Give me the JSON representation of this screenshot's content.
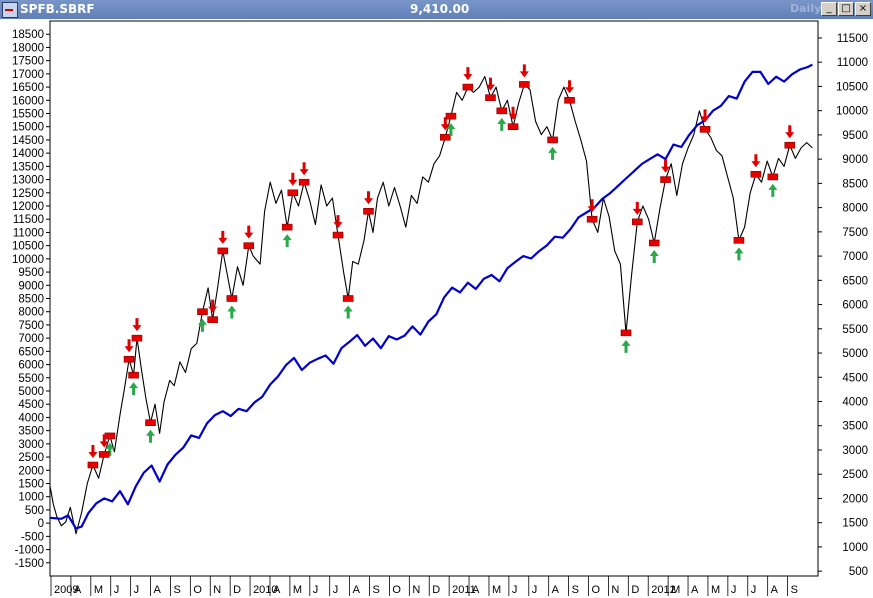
{
  "window": {
    "symbol": "SPFB.SBRF",
    "last_value": "9,410.00",
    "period": "Daily",
    "buttons": [
      {
        "name": "minimize-button",
        "glyph": "_"
      },
      {
        "name": "maximize-button",
        "glyph": "□"
      },
      {
        "name": "close-button",
        "glyph": "×"
      }
    ]
  },
  "chart_data": {
    "type": "line",
    "left_axis": {
      "ticks": [
        -1500,
        -1000,
        -500,
        0,
        500,
        1000,
        1500,
        2000,
        2500,
        3000,
        3500,
        4000,
        4500,
        5000,
        5500,
        6000,
        6500,
        7000,
        7500,
        8000,
        8500,
        9000,
        9500,
        10000,
        10500,
        11000,
        11500,
        12000,
        12500,
        13000,
        13500,
        14000,
        14500,
        15000,
        15500,
        16000,
        16500,
        17000,
        17500,
        18000,
        18500
      ],
      "range": [
        -2000,
        19000
      ]
    },
    "right_axis": {
      "ticks": [
        500,
        1000,
        1500,
        2000,
        2500,
        3000,
        3500,
        4000,
        4500,
        5000,
        5500,
        6000,
        6500,
        7000,
        7500,
        8000,
        8500,
        9000,
        9500,
        10000,
        10500,
        11000,
        11500
      ],
      "range": [
        400,
        11850
      ]
    },
    "x_labels": [
      "2009",
      "A",
      "M",
      "J",
      "J",
      "A",
      "S",
      "O",
      "N",
      "D",
      "2010",
      "A",
      "M",
      "J",
      "J",
      "A",
      "S",
      "O",
      "N",
      "D",
      "2011",
      "A",
      "M",
      "J",
      "J",
      "A",
      "S",
      "O",
      "N",
      "D",
      "2012",
      "M",
      "A",
      "M",
      "J",
      "J",
      "A",
      "S"
    ],
    "series": [
      {
        "id": "equity",
        "axis": "left",
        "color": "#000000",
        "points": [
          [
            0,
            1400
          ],
          [
            0.3,
            700
          ],
          [
            0.6,
            250
          ],
          [
            1,
            -100
          ],
          [
            1.4,
            50
          ],
          [
            1.8,
            600
          ],
          [
            2.3,
            -400
          ],
          [
            2.8,
            400
          ],
          [
            3.3,
            1500
          ],
          [
            3.8,
            2200
          ],
          [
            4.3,
            1700
          ],
          [
            4.8,
            2600
          ],
          [
            5.3,
            3300
          ],
          [
            5.7,
            2700
          ],
          [
            6.2,
            4100
          ],
          [
            6.6,
            5100
          ],
          [
            7,
            6200
          ],
          [
            7.4,
            5600
          ],
          [
            7.7,
            7000
          ],
          [
            8.1,
            5800
          ],
          [
            8.5,
            4700
          ],
          [
            8.9,
            3800
          ],
          [
            9.3,
            4500
          ],
          [
            9.7,
            3400
          ],
          [
            10.1,
            4600
          ],
          [
            10.6,
            5400
          ],
          [
            11,
            5200
          ],
          [
            11.5,
            6100
          ],
          [
            12,
            5700
          ],
          [
            12.5,
            6600
          ],
          [
            13,
            6800
          ],
          [
            13.5,
            8000
          ],
          [
            14,
            8900
          ],
          [
            14.4,
            7700
          ],
          [
            14.8,
            8800
          ],
          [
            15.3,
            10300
          ],
          [
            15.7,
            9400
          ],
          [
            16.1,
            8500
          ],
          [
            16.6,
            9700
          ],
          [
            17.1,
            9000
          ],
          [
            17.6,
            10500
          ],
          [
            18,
            10100
          ],
          [
            18.6,
            9800
          ],
          [
            19,
            11800
          ],
          [
            19.5,
            12900
          ],
          [
            20,
            12100
          ],
          [
            20.5,
            12600
          ],
          [
            21,
            11200
          ],
          [
            21.5,
            12500
          ],
          [
            22,
            12000
          ],
          [
            22.5,
            12900
          ],
          [
            23,
            12200
          ],
          [
            23.5,
            11300
          ],
          [
            24,
            12800
          ],
          [
            24.5,
            12000
          ],
          [
            25,
            12300
          ],
          [
            25.5,
            10900
          ],
          [
            26,
            9500
          ],
          [
            26.4,
            8500
          ],
          [
            26.8,
            9900
          ],
          [
            27.3,
            9800
          ],
          [
            27.8,
            10700
          ],
          [
            28.2,
            11800
          ],
          [
            28.6,
            11000
          ],
          [
            29,
            12300
          ],
          [
            29.5,
            12900
          ],
          [
            30,
            12000
          ],
          [
            30.5,
            12700
          ],
          [
            31,
            12000
          ],
          [
            31.5,
            11200
          ],
          [
            32,
            12400
          ],
          [
            32.5,
            12100
          ],
          [
            33,
            13100
          ],
          [
            33.5,
            12900
          ],
          [
            34,
            13600
          ],
          [
            34.5,
            13900
          ],
          [
            35,
            14600
          ],
          [
            35.5,
            15400
          ],
          [
            36,
            16300
          ],
          [
            36.5,
            16000
          ],
          [
            37,
            16500
          ],
          [
            37.5,
            16300
          ],
          [
            38,
            16500
          ],
          [
            38.5,
            16900
          ],
          [
            39,
            16100
          ],
          [
            39.5,
            16500
          ],
          [
            40,
            15600
          ],
          [
            40.5,
            16000
          ],
          [
            41,
            15000
          ],
          [
            41.5,
            15900
          ],
          [
            42,
            16600
          ],
          [
            42.5,
            16400
          ],
          [
            43,
            15200
          ],
          [
            43.5,
            14700
          ],
          [
            44,
            15000
          ],
          [
            44.5,
            14500
          ],
          [
            45,
            16000
          ],
          [
            45.5,
            16500
          ],
          [
            46,
            16000
          ],
          [
            46.5,
            15200
          ],
          [
            47,
            14500
          ],
          [
            47.5,
            13700
          ],
          [
            48,
            11500
          ],
          [
            48.5,
            11000
          ],
          [
            49,
            12300
          ],
          [
            49.5,
            11600
          ],
          [
            50,
            10300
          ],
          [
            50.5,
            9800
          ],
          [
            51,
            7200
          ],
          [
            51.5,
            9400
          ],
          [
            52,
            11400
          ],
          [
            52.5,
            12000
          ],
          [
            53,
            11500
          ],
          [
            53.5,
            10600
          ],
          [
            54,
            11900
          ],
          [
            54.5,
            13000
          ],
          [
            55,
            13600
          ],
          [
            55.5,
            12400
          ],
          [
            56,
            13600
          ],
          [
            56.5,
            14200
          ],
          [
            57,
            14700
          ],
          [
            57.5,
            15600
          ],
          [
            58,
            14900
          ],
          [
            58.5,
            14600
          ],
          [
            59,
            14100
          ],
          [
            59.5,
            13900
          ],
          [
            60,
            13100
          ],
          [
            60.5,
            12300
          ],
          [
            61,
            10700
          ],
          [
            61.5,
            11200
          ],
          [
            62,
            12500
          ],
          [
            62.5,
            13200
          ],
          [
            63,
            12900
          ],
          [
            63.5,
            13700
          ],
          [
            64,
            13100
          ],
          [
            64.5,
            13800
          ],
          [
            65,
            13500
          ],
          [
            65.5,
            14300
          ],
          [
            66,
            13800
          ],
          [
            66.5,
            14200
          ],
          [
            67,
            14400
          ],
          [
            67.5,
            14200
          ]
        ]
      },
      {
        "id": "underlying",
        "axis": "right",
        "color": "#0000cc",
        "points": [
          [
            0,
            1600
          ],
          [
            1,
            1580
          ],
          [
            1.6,
            1650
          ],
          [
            2.3,
            1380
          ],
          [
            2.8,
            1420
          ],
          [
            3.4,
            1700
          ],
          [
            4.1,
            1900
          ],
          [
            4.8,
            2000
          ],
          [
            5.5,
            1940
          ],
          [
            6.2,
            2150
          ],
          [
            6.9,
            1880
          ],
          [
            7.6,
            2250
          ],
          [
            8.3,
            2530
          ],
          [
            9,
            2680
          ],
          [
            9.7,
            2350
          ],
          [
            10.4,
            2700
          ],
          [
            11.1,
            2900
          ],
          [
            11.8,
            3050
          ],
          [
            12.5,
            3300
          ],
          [
            13.2,
            3250
          ],
          [
            13.9,
            3550
          ],
          [
            14.6,
            3720
          ],
          [
            15.3,
            3800
          ],
          [
            16,
            3700
          ],
          [
            16.7,
            3850
          ],
          [
            17.4,
            3800
          ],
          [
            18.1,
            3980
          ],
          [
            18.8,
            4100
          ],
          [
            19.5,
            4350
          ],
          [
            20.2,
            4520
          ],
          [
            20.9,
            4750
          ],
          [
            21.6,
            4900
          ],
          [
            22.3,
            4650
          ],
          [
            23,
            4800
          ],
          [
            23.7,
            4880
          ],
          [
            24.4,
            4950
          ],
          [
            25.1,
            4780
          ],
          [
            25.8,
            5100
          ],
          [
            26.5,
            5230
          ],
          [
            27.2,
            5370
          ],
          [
            27.9,
            5150
          ],
          [
            28.6,
            5300
          ],
          [
            29.3,
            5100
          ],
          [
            30,
            5350
          ],
          [
            30.7,
            5280
          ],
          [
            31.4,
            5360
          ],
          [
            32.1,
            5550
          ],
          [
            32.8,
            5380
          ],
          [
            33.5,
            5650
          ],
          [
            34.2,
            5800
          ],
          [
            34.9,
            6150
          ],
          [
            35.6,
            6350
          ],
          [
            36.3,
            6250
          ],
          [
            37,
            6450
          ],
          [
            37.7,
            6320
          ],
          [
            38.4,
            6530
          ],
          [
            39.1,
            6610
          ],
          [
            39.8,
            6480
          ],
          [
            40.5,
            6750
          ],
          [
            41.2,
            6880
          ],
          [
            41.9,
            7000
          ],
          [
            42.6,
            6950
          ],
          [
            43.3,
            7100
          ],
          [
            44,
            7220
          ],
          [
            44.7,
            7400
          ],
          [
            45.4,
            7380
          ],
          [
            46.1,
            7560
          ],
          [
            46.8,
            7800
          ],
          [
            47.5,
            7900
          ],
          [
            48.2,
            8000
          ],
          [
            48.9,
            8180
          ],
          [
            49.6,
            8300
          ],
          [
            50.3,
            8450
          ],
          [
            51,
            8600
          ],
          [
            51.7,
            8750
          ],
          [
            52.4,
            8900
          ],
          [
            53.1,
            9000
          ],
          [
            53.8,
            9100
          ],
          [
            54.5,
            9000
          ],
          [
            55.2,
            9300
          ],
          [
            55.9,
            9250
          ],
          [
            56.6,
            9500
          ],
          [
            57.3,
            9700
          ],
          [
            58,
            9800
          ],
          [
            58.7,
            10000
          ],
          [
            59.4,
            10100
          ],
          [
            60.1,
            10300
          ],
          [
            60.8,
            10250
          ],
          [
            61.5,
            10600
          ],
          [
            62.2,
            10800
          ],
          [
            62.9,
            10800
          ],
          [
            63.6,
            10550
          ],
          [
            64.3,
            10700
          ],
          [
            65,
            10600
          ],
          [
            65.7,
            10750
          ],
          [
            66.4,
            10850
          ],
          [
            67.1,
            10900
          ],
          [
            67.5,
            10950
          ]
        ]
      }
    ],
    "signals": [
      {
        "x": 3.8,
        "y": 2200,
        "dir": "sell"
      },
      {
        "x": 5.3,
        "y": 3300,
        "dir": "buy"
      },
      {
        "x": 4.8,
        "y": 2600,
        "dir": "sell"
      },
      {
        "x": 7,
        "y": 6200,
        "dir": "sell"
      },
      {
        "x": 7.7,
        "y": 7000,
        "dir": "sell"
      },
      {
        "x": 7.4,
        "y": 5600,
        "dir": "buy"
      },
      {
        "x": 8.9,
        "y": 3800,
        "dir": "buy"
      },
      {
        "x": 13.5,
        "y": 8000,
        "dir": "buy"
      },
      {
        "x": 14.4,
        "y": 7700,
        "dir": "sell"
      },
      {
        "x": 15.3,
        "y": 10300,
        "dir": "sell"
      },
      {
        "x": 16.1,
        "y": 8500,
        "dir": "buy"
      },
      {
        "x": 17.6,
        "y": 10500,
        "dir": "sell"
      },
      {
        "x": 21,
        "y": 11200,
        "dir": "buy"
      },
      {
        "x": 21.5,
        "y": 12500,
        "dir": "sell"
      },
      {
        "x": 22.5,
        "y": 12900,
        "dir": "sell"
      },
      {
        "x": 25.5,
        "y": 10900,
        "dir": "sell"
      },
      {
        "x": 26.4,
        "y": 8500,
        "dir": "buy"
      },
      {
        "x": 28.2,
        "y": 11800,
        "dir": "sell"
      },
      {
        "x": 35,
        "y": 14600,
        "dir": "sell"
      },
      {
        "x": 35.5,
        "y": 15400,
        "dir": "buy"
      },
      {
        "x": 37,
        "y": 16500,
        "dir": "sell"
      },
      {
        "x": 39,
        "y": 16100,
        "dir": "sell"
      },
      {
        "x": 40,
        "y": 15600,
        "dir": "buy"
      },
      {
        "x": 41,
        "y": 15000,
        "dir": "sell"
      },
      {
        "x": 42,
        "y": 16600,
        "dir": "sell"
      },
      {
        "x": 44.5,
        "y": 14500,
        "dir": "buy"
      },
      {
        "x": 46,
        "y": 16000,
        "dir": "sell"
      },
      {
        "x": 48,
        "y": 11500,
        "dir": "sell"
      },
      {
        "x": 51,
        "y": 7200,
        "dir": "buy"
      },
      {
        "x": 52,
        "y": 11400,
        "dir": "sell"
      },
      {
        "x": 53.5,
        "y": 10600,
        "dir": "buy"
      },
      {
        "x": 54.5,
        "y": 13000,
        "dir": "sell"
      },
      {
        "x": 58,
        "y": 14900,
        "dir": "sell"
      },
      {
        "x": 61,
        "y": 10700,
        "dir": "buy"
      },
      {
        "x": 62.5,
        "y": 13200,
        "dir": "sell"
      },
      {
        "x": 64,
        "y": 13100,
        "dir": "buy"
      },
      {
        "x": 65.5,
        "y": 14300,
        "dir": "sell"
      }
    ]
  }
}
